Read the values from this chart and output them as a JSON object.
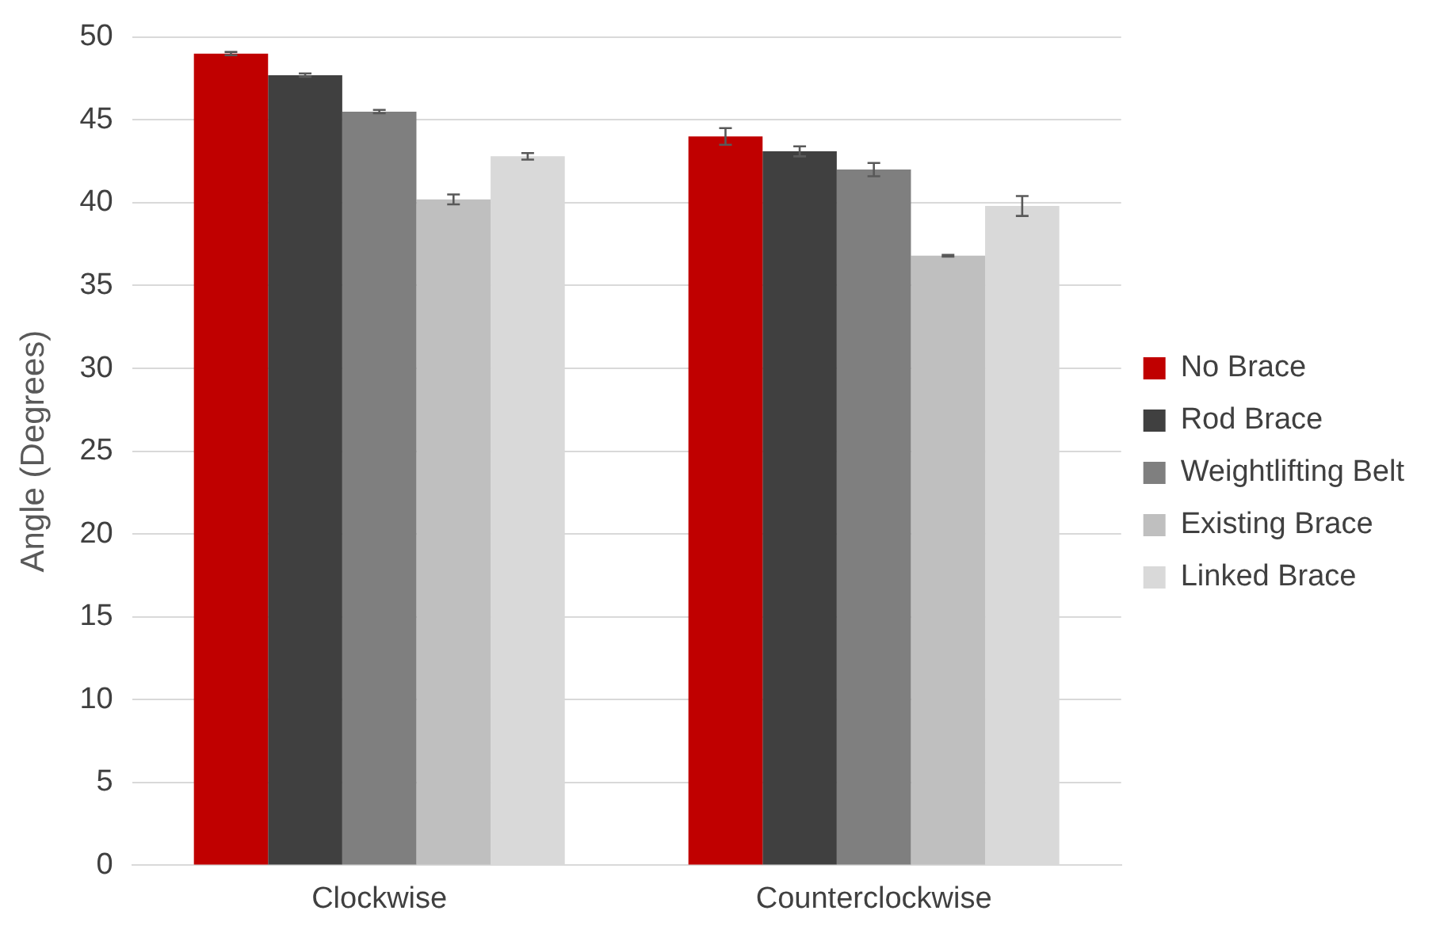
{
  "chart_data": {
    "type": "bar",
    "ylabel": "Angle (Degrees)",
    "categories": [
      "Clockwise",
      "Counterclockwise"
    ],
    "series": [
      {
        "name": "No Brace",
        "color": "#c00000",
        "values": [
          49.0,
          44.0
        ],
        "errors": [
          0.1,
          0.5
        ]
      },
      {
        "name": "Rod Brace",
        "color": "#404040",
        "values": [
          47.7,
          43.1
        ],
        "errors": [
          0.1,
          0.3
        ]
      },
      {
        "name": "Weightlifting Belt",
        "color": "#7f7f7f",
        "values": [
          45.5,
          42.0
        ],
        "errors": [
          0.1,
          0.4
        ]
      },
      {
        "name": "Existing Brace",
        "color": "#bfbfbf",
        "values": [
          40.2,
          36.8
        ],
        "errors": [
          0.3,
          0.05
        ]
      },
      {
        "name": "Linked Brace",
        "color": "#d9d9d9",
        "values": [
          42.8,
          39.8
        ],
        "errors": [
          0.2,
          0.6
        ]
      }
    ],
    "ylim": [
      0,
      50
    ],
    "yticks": [
      0,
      5,
      10,
      15,
      20,
      25,
      30,
      35,
      40,
      45,
      50
    ],
    "grid": "y",
    "legend": "right"
  }
}
